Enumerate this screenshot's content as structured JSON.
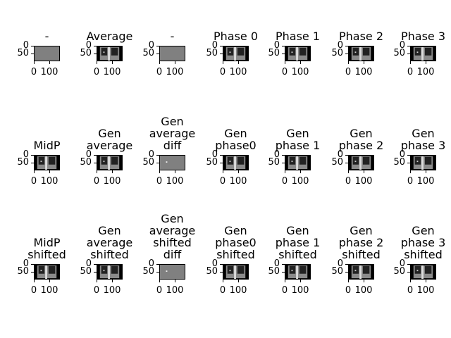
{
  "chart_data": {
    "type": "image-grid",
    "rows": 3,
    "cols": 7,
    "panels": [
      {
        "title": "-",
        "kind": "flat"
      },
      {
        "title": "Average",
        "kind": "scene"
      },
      {
        "title": "-",
        "kind": "flat"
      },
      {
        "title": "Phase 0",
        "kind": "scene"
      },
      {
        "title": "Phase 1",
        "kind": "scene"
      },
      {
        "title": "Phase 2",
        "kind": "scene"
      },
      {
        "title": "Phase 3",
        "kind": "scene"
      },
      {
        "title": "MidP",
        "kind": "scene"
      },
      {
        "title": "Gen average",
        "kind": "scene"
      },
      {
        "title": "Gen average diff",
        "kind": "diff"
      },
      {
        "title": "Gen phase0",
        "kind": "scene"
      },
      {
        "title": "Gen phase 1",
        "kind": "scene"
      },
      {
        "title": "Gen phase 2",
        "kind": "scene"
      },
      {
        "title": "Gen phase 3",
        "kind": "scene"
      },
      {
        "title": "MidP shifted",
        "kind": "scene"
      },
      {
        "title": "Gen average shifted",
        "kind": "scene"
      },
      {
        "title": "Gen average shifted diff",
        "kind": "diff"
      },
      {
        "title": "Gen phase0 shifted",
        "kind": "scene"
      },
      {
        "title": "Gen phase 1 shifted",
        "kind": "scene"
      },
      {
        "title": "Gen phase 2 shifted",
        "kind": "scene"
      },
      {
        "title": "Gen phase 3 shifted",
        "kind": "scene"
      }
    ],
    "yticks": [
      "0",
      "50"
    ],
    "xticks": [
      "0",
      "100"
    ],
    "colormap": "gray"
  }
}
